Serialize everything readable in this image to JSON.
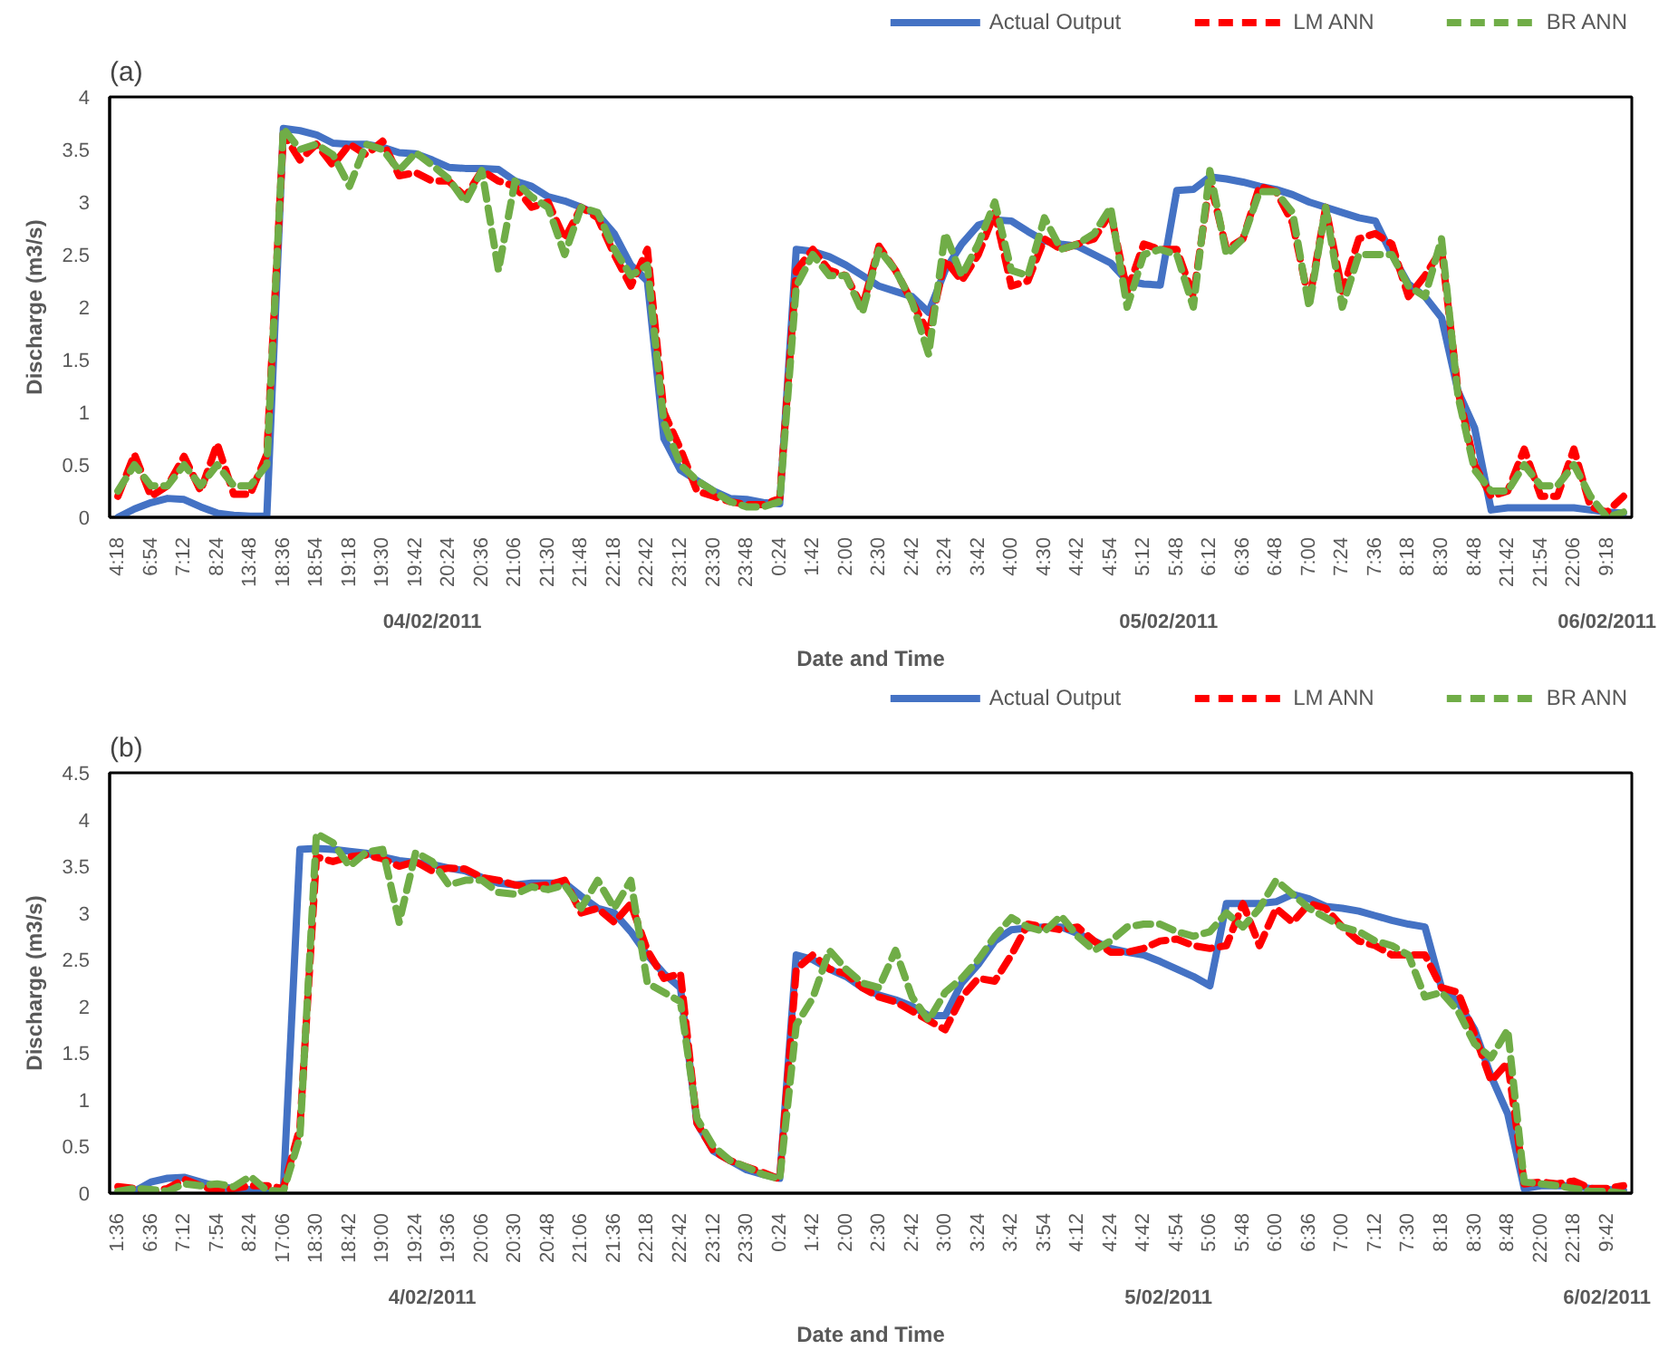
{
  "chart_data": [
    {
      "type": "line",
      "title": "(a)",
      "xlabel": "Date and Time",
      "ylabel": "Discharge (m3/s)",
      "categories": [
        "4:18",
        null,
        "6:54",
        null,
        "7:12",
        null,
        "8:24",
        null,
        "13:48",
        null,
        "18:36",
        null,
        "18:54",
        null,
        "19:18",
        null,
        "19:30",
        null,
        "19:42",
        null,
        "20:24",
        null,
        "20:36",
        null,
        "21:06",
        null,
        "21:30",
        null,
        "21:48",
        null,
        "22:18",
        null,
        "22:42",
        null,
        "23:12",
        null,
        "23:30",
        null,
        "23:48",
        null,
        "0:24",
        null,
        "1:42",
        null,
        "2:00",
        null,
        "2:30",
        null,
        "2:42",
        null,
        "3:24",
        null,
        "3:42",
        null,
        "4:00",
        null,
        "4:30",
        null,
        "4:42",
        null,
        "4:54",
        null,
        "5:12",
        null,
        "5:48",
        null,
        "6:12",
        null,
        "6:36",
        null,
        "6:48",
        null,
        "7:00",
        null,
        "7:24",
        null,
        "7:36",
        null,
        "8:18",
        null,
        "8:30",
        null,
        "8:48",
        null,
        "21:42",
        null,
        "21:54",
        null,
        "22:06",
        null,
        "9:18",
        null
      ],
      "series": [
        {
          "name": "Actual Output",
          "color": "#4472c4",
          "line_style": "solid",
          "values": [
            0,
            0.08,
            0.14,
            0.18,
            0.17,
            0.1,
            0.04,
            0.02,
            0.01,
            0.01,
            3.7,
            3.68,
            3.64,
            3.56,
            3.55,
            3.55,
            3.52,
            3.47,
            3.46,
            3.4,
            3.33,
            3.32,
            3.32,
            3.31,
            3.2,
            3.15,
            3.05,
            3.01,
            2.95,
            2.88,
            2.7,
            2.4,
            2.25,
            0.75,
            0.45,
            0.35,
            0.25,
            0.18,
            0.17,
            0.14,
            0.13,
            2.55,
            2.53,
            2.48,
            2.4,
            2.3,
            2.2,
            2.15,
            2.1,
            1.95,
            2.35,
            2.6,
            2.78,
            2.83,
            2.82,
            2.72,
            2.63,
            2.6,
            2.58,
            2.5,
            2.42,
            2.25,
            2.22,
            2.21,
            3.11,
            3.12,
            3.24,
            3.22,
            3.19,
            3.15,
            3.12,
            3.07,
            3.0,
            2.95,
            2.9,
            2.85,
            2.82,
            2.5,
            2.22,
            2.1,
            1.9,
            1.2,
            0.85,
            0.07,
            0.09,
            0.09,
            0.09,
            0.09,
            0.09,
            0.07,
            0.05,
            0.04
          ]
        },
        {
          "name": "LM ANN",
          "color": "#ff0000",
          "line_style": "dashed",
          "values": [
            0.2,
            0.6,
            0.2,
            0.3,
            0.58,
            0.25,
            0.7,
            0.22,
            0.22,
            0.6,
            3.65,
            3.4,
            3.55,
            3.35,
            3.55,
            3.45,
            3.58,
            3.25,
            3.28,
            3.2,
            3.2,
            3.05,
            3.3,
            3.2,
            3.15,
            2.95,
            3.0,
            2.65,
            2.95,
            2.85,
            2.5,
            2.2,
            2.55,
            1.0,
            0.65,
            0.25,
            0.2,
            0.15,
            0.12,
            0.12,
            0.18,
            2.35,
            2.55,
            2.35,
            2.3,
            2.0,
            2.58,
            2.35,
            2.05,
            1.75,
            2.45,
            2.25,
            2.5,
            2.9,
            2.2,
            2.25,
            2.65,
            2.55,
            2.6,
            2.65,
            2.9,
            2.15,
            2.6,
            2.55,
            2.55,
            2.1,
            3.2,
            2.55,
            2.65,
            3.15,
            3.1,
            2.8,
            2.05,
            2.95,
            2.15,
            2.65,
            2.7,
            2.6,
            2.1,
            2.3,
            2.55,
            1.2,
            0.5,
            0.2,
            0.25,
            0.65,
            0.2,
            0.2,
            0.65,
            0.1,
            0.05,
            0.2
          ]
        },
        {
          "name": "BR ANN",
          "color": "#70ad47",
          "line_style": "dashed",
          "values": [
            0.25,
            0.5,
            0.3,
            0.3,
            0.5,
            0.3,
            0.5,
            0.3,
            0.3,
            0.5,
            3.7,
            3.5,
            3.55,
            3.45,
            3.15,
            3.55,
            3.5,
            3.3,
            3.47,
            3.35,
            3.22,
            3.0,
            3.3,
            2.35,
            3.2,
            3.05,
            2.95,
            2.5,
            2.95,
            2.9,
            2.55,
            2.3,
            2.4,
            0.9,
            0.5,
            0.35,
            0.25,
            0.15,
            0.1,
            0.1,
            0.15,
            2.2,
            2.5,
            2.3,
            2.3,
            1.95,
            2.55,
            2.35,
            2.05,
            1.55,
            2.7,
            2.3,
            2.6,
            3.0,
            2.35,
            2.3,
            2.85,
            2.55,
            2.6,
            2.7,
            2.95,
            2.0,
            2.5,
            2.55,
            2.5,
            2.0,
            3.3,
            2.5,
            2.65,
            3.1,
            3.1,
            2.9,
            2.0,
            2.95,
            2.0,
            2.5,
            2.5,
            2.5,
            2.2,
            2.1,
            2.65,
            1.15,
            0.45,
            0.25,
            0.25,
            0.5,
            0.3,
            0.3,
            0.5,
            0.2,
            0.0,
            0.05
          ]
        }
      ],
      "ylim": [
        0,
        4
      ],
      "yticks": [
        0,
        0.5,
        1,
        1.5,
        2,
        2.5,
        3,
        3.5,
        4
      ],
      "grid": false,
      "legend": "top",
      "annotations": [
        "04/02/2011",
        "05/02/2011",
        "06/02/2011"
      ]
    },
    {
      "type": "line",
      "title": "(b)",
      "xlabel": "Date and Time",
      "ylabel": "Discharge (m3/s)",
      "categories": [
        "1:36",
        null,
        "6:36",
        null,
        "7:12",
        null,
        "7:54",
        null,
        "8:24",
        null,
        "17:06",
        null,
        "18:30",
        null,
        "18:42",
        null,
        "19:00",
        null,
        "19:24",
        null,
        "19:36",
        null,
        "20:06",
        null,
        "20:30",
        null,
        "20:48",
        null,
        "21:06",
        null,
        "21:36",
        null,
        "22:18",
        null,
        "22:42",
        null,
        "23:12",
        null,
        "23:30",
        null,
        "0:24",
        null,
        "1:42",
        null,
        "2:00",
        null,
        "2:30",
        null,
        "2:42",
        null,
        "3:00",
        null,
        "3:24",
        null,
        "3:42",
        null,
        "3:54",
        null,
        "4:12",
        null,
        "4:24",
        null,
        "4:42",
        null,
        "4:54",
        null,
        "5:06",
        null,
        "5:48",
        null,
        "6:00",
        null,
        "6:36",
        null,
        "7:00",
        null,
        "7:12",
        null,
        "7:30",
        null,
        "8:18",
        null,
        "8:30",
        null,
        "8:48",
        null,
        "22:00",
        null,
        "22:18",
        null,
        "9:42",
        null
      ],
      "series": [
        {
          "name": "Actual Output",
          "color": "#4472c4",
          "line_style": "solid",
          "values": [
            0,
            0.02,
            0.12,
            0.16,
            0.17,
            0.12,
            0.07,
            0.05,
            0.04,
            0.02,
            0.03,
            3.68,
            3.69,
            3.68,
            3.66,
            3.64,
            3.6,
            3.56,
            3.54,
            3.52,
            3.48,
            3.45,
            3.38,
            3.32,
            3.3,
            3.32,
            3.32,
            3.32,
            3.18,
            3.05,
            3.0,
            2.8,
            2.55,
            2.35,
            2.2,
            0.75,
            0.45,
            0.35,
            0.25,
            0.2,
            0.16,
            2.55,
            2.5,
            2.4,
            2.32,
            2.2,
            2.12,
            2.07,
            2.0,
            1.9,
            1.9,
            2.25,
            2.45,
            2.7,
            2.82,
            2.84,
            2.85,
            2.85,
            2.78,
            2.7,
            2.62,
            2.58,
            2.55,
            2.48,
            2.4,
            2.32,
            2.22,
            3.1,
            3.1,
            3.1,
            3.12,
            3.2,
            3.15,
            3.07,
            3.05,
            3.02,
            2.97,
            2.92,
            2.88,
            2.85,
            2.2,
            2.05,
            1.75,
            1.25,
            0.85,
            0.05,
            0.08,
            0.08,
            0.08,
            0.05,
            0.04,
            0.03
          ]
        },
        {
          "name": "LM ANN",
          "color": "#ff0000",
          "line_style": "dashed",
          "values": [
            0.07,
            0.05,
            0.02,
            0.05,
            0.15,
            0.08,
            0.02,
            0.05,
            0.08,
            0.08,
            0.05,
            0.7,
            3.6,
            3.55,
            3.6,
            3.62,
            3.58,
            3.5,
            3.55,
            3.45,
            3.48,
            3.47,
            3.38,
            3.35,
            3.3,
            3.28,
            3.3,
            3.35,
            3.0,
            3.05,
            2.9,
            3.1,
            2.6,
            2.3,
            2.35,
            0.75,
            0.45,
            0.35,
            0.28,
            0.22,
            0.15,
            2.4,
            2.55,
            2.4,
            2.35,
            2.2,
            2.1,
            2.05,
            1.95,
            1.85,
            1.75,
            2.1,
            2.3,
            2.27,
            2.55,
            2.88,
            2.85,
            2.82,
            2.85,
            2.7,
            2.58,
            2.58,
            2.62,
            2.7,
            2.72,
            2.65,
            2.62,
            2.65,
            3.1,
            2.65,
            3.05,
            2.9,
            3.1,
            3.05,
            2.85,
            2.7,
            2.65,
            2.55,
            2.55,
            2.55,
            2.2,
            2.15,
            1.7,
            1.2,
            1.4,
            0.1,
            0.12,
            0.1,
            0.13,
            0.05,
            0.05,
            0.08
          ]
        },
        {
          "name": "BR ANN",
          "color": "#70ad47",
          "line_style": "dashed",
          "values": [
            0.02,
            0.05,
            0.04,
            0.02,
            0.1,
            0.08,
            0.1,
            0.07,
            0.18,
            0.03,
            0.02,
            0.6,
            3.85,
            3.75,
            3.5,
            3.65,
            3.68,
            2.9,
            3.65,
            3.55,
            3.3,
            3.35,
            3.35,
            3.22,
            3.2,
            3.28,
            3.25,
            3.3,
            3.05,
            3.35,
            3.05,
            3.35,
            2.25,
            2.15,
            2.05,
            0.8,
            0.5,
            0.35,
            0.28,
            0.2,
            0.15,
            1.8,
            2.09,
            2.6,
            2.4,
            2.25,
            2.2,
            2.6,
            2.1,
            1.85,
            2.15,
            2.3,
            2.5,
            2.75,
            2.95,
            2.85,
            2.8,
            2.97,
            2.75,
            2.6,
            2.7,
            2.85,
            2.88,
            2.88,
            2.8,
            2.75,
            2.8,
            3.0,
            2.85,
            3.05,
            3.35,
            3.2,
            3.05,
            2.95,
            2.85,
            2.8,
            2.7,
            2.65,
            2.55,
            2.1,
            2.15,
            1.95,
            1.6,
            1.45,
            1.75,
            0.12,
            0.1,
            0.08,
            0.05,
            0.02,
            0.02,
            0.0
          ]
        }
      ],
      "ylim": [
        0,
        4.5
      ],
      "yticks": [
        0,
        0.5,
        1,
        1.5,
        2,
        2.5,
        3,
        3.5,
        4,
        4.5
      ],
      "grid": false,
      "legend": "top",
      "annotations": [
        "4/02/2011",
        "5/02/2011",
        "6/02/2011"
      ]
    }
  ]
}
